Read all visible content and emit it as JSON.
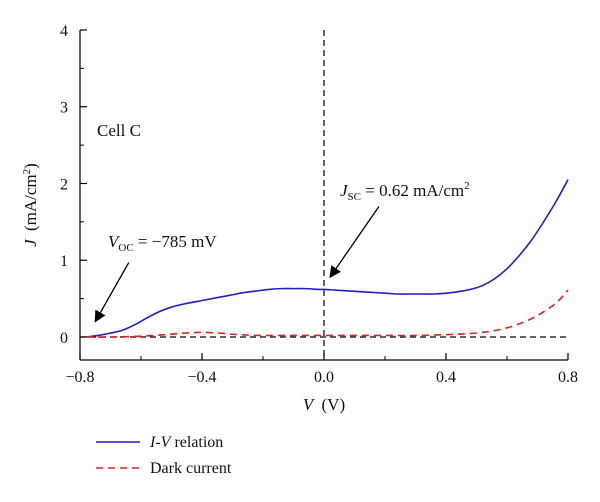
{
  "chart_data": {
    "type": "line",
    "xlabel": {
      "var": "V",
      "unit": "(V)"
    },
    "ylabel": {
      "var": "J",
      "unit_open": "(mA/cm",
      "unit_sup": "2",
      "unit_close": ")"
    },
    "xlim": [
      -0.8,
      0.8
    ],
    "ylim": [
      -0.3,
      4
    ],
    "x_major_ticks": [
      -0.8,
      -0.4,
      0.0,
      0.4,
      0.8
    ],
    "x_tick_labels": [
      "−0.8",
      "−0.4",
      "0.0",
      "0.4",
      "0.8"
    ],
    "y_major_ticks": [
      0,
      1,
      2,
      3,
      4
    ],
    "y_tick_labels": [
      "0",
      "1",
      "2",
      "3",
      "4"
    ],
    "x_minor_ticks": [
      -0.6,
      -0.2,
      0.2,
      0.6
    ],
    "y_minor_ticks": [
      0.5,
      1.5,
      2.5,
      3.5
    ],
    "grid": false,
    "legend_position": "below-left",
    "reference_lines": [
      {
        "orientation": "vertical",
        "value": 0.0,
        "style": "dashed",
        "color": "#000000"
      },
      {
        "orientation": "horizontal",
        "value": 0.0,
        "style": "dashed",
        "color": "#000000"
      }
    ],
    "series": [
      {
        "name": "I-V relation",
        "legend_var": "I-V",
        "legend_rest": " relation",
        "color": "#1f1fc8",
        "style": "solid",
        "x": [
          -0.78,
          -0.74,
          -0.7,
          -0.66,
          -0.62,
          -0.58,
          -0.54,
          -0.5,
          -0.46,
          -0.42,
          -0.38,
          -0.34,
          -0.3,
          -0.26,
          -0.22,
          -0.18,
          -0.14,
          -0.1,
          -0.06,
          -0.02,
          0.0,
          0.04,
          0.08,
          0.12,
          0.16,
          0.2,
          0.24,
          0.28,
          0.32,
          0.36,
          0.4,
          0.44,
          0.48,
          0.52,
          0.56,
          0.6,
          0.64,
          0.68,
          0.72,
          0.76,
          0.8
        ],
        "y": [
          0.0,
          0.02,
          0.05,
          0.09,
          0.16,
          0.25,
          0.33,
          0.39,
          0.43,
          0.46,
          0.49,
          0.52,
          0.55,
          0.58,
          0.6,
          0.62,
          0.63,
          0.63,
          0.63,
          0.62,
          0.62,
          0.61,
          0.6,
          0.59,
          0.58,
          0.57,
          0.56,
          0.56,
          0.56,
          0.56,
          0.57,
          0.59,
          0.62,
          0.67,
          0.76,
          0.89,
          1.06,
          1.26,
          1.5,
          1.76,
          2.05
        ]
      },
      {
        "name": "Dark current",
        "legend_var": "",
        "legend_rest": "Dark current",
        "color": "#e02020",
        "style": "dashed",
        "x": [
          -0.78,
          -0.7,
          -0.6,
          -0.52,
          -0.46,
          -0.4,
          -0.34,
          -0.28,
          -0.2,
          -0.1,
          0.0,
          0.1,
          0.2,
          0.3,
          0.4,
          0.46,
          0.52,
          0.58,
          0.64,
          0.7,
          0.76,
          0.8
        ],
        "y": [
          0.0,
          0.0,
          0.01,
          0.03,
          0.05,
          0.06,
          0.05,
          0.03,
          0.02,
          0.02,
          0.02,
          0.02,
          0.02,
          0.02,
          0.03,
          0.04,
          0.06,
          0.1,
          0.17,
          0.28,
          0.44,
          0.61
        ]
      }
    ],
    "annotations": {
      "cell_label": "Cell C",
      "voc": {
        "var": "V",
        "sub": "OC",
        "text": " = −785 mV",
        "arrow_from": [
          -0.64,
          0.97
        ],
        "arrow_to": [
          -0.75,
          0.2
        ]
      },
      "jsc": {
        "var": "J",
        "sub": "SC",
        "text_main": " = 0.62 mA/cm",
        "text_sup": "2",
        "arrow_from": [
          0.18,
          1.7
        ],
        "arrow_to": [
          0.02,
          0.78
        ]
      }
    }
  }
}
